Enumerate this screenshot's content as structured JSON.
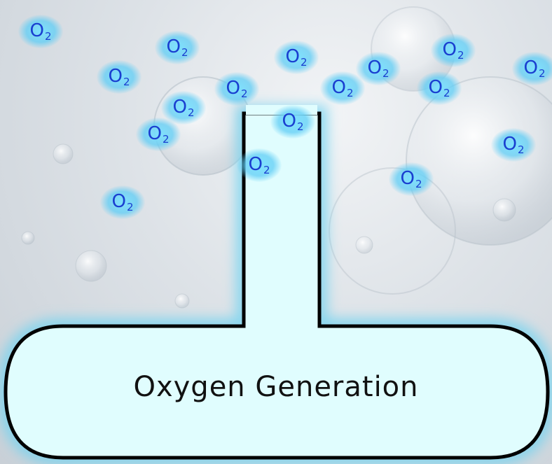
{
  "diagram": {
    "label": "Oxygen Generation",
    "molecule_symbol": "O",
    "molecule_subscript": "2",
    "molecule_count": 18
  }
}
